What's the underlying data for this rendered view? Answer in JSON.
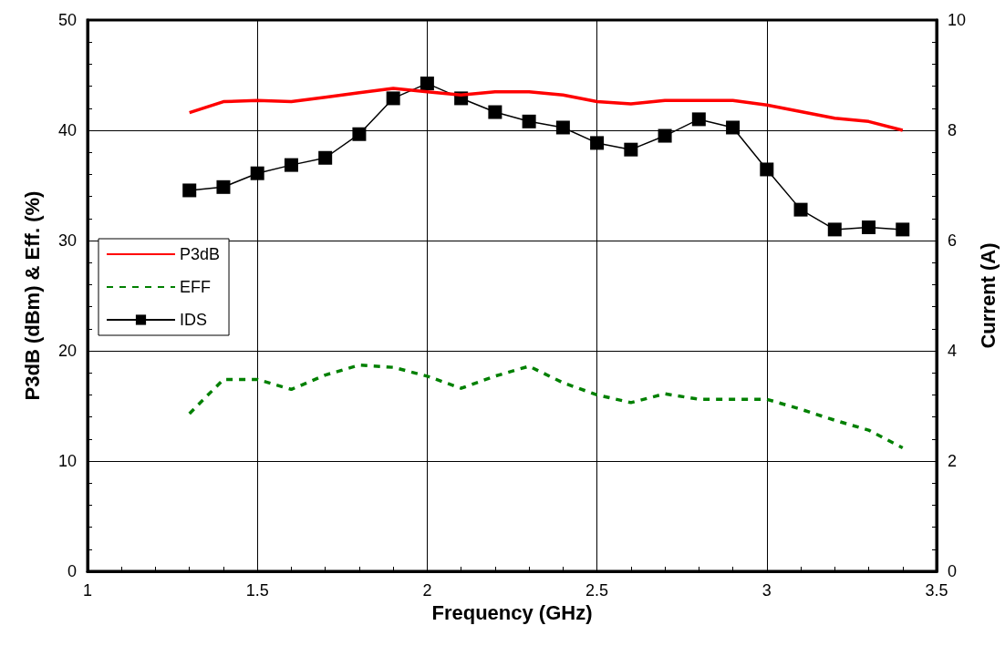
{
  "chart_data": {
    "type": "line",
    "xlabel": "Frequency (GHz)",
    "ylabel": "P3dB (dBm) & Eff. (%)",
    "y2label": "Current (A)",
    "x": [
      1.3,
      1.4,
      1.5,
      1.6,
      1.7,
      1.8,
      1.9,
      2.0,
      2.1,
      2.2,
      2.3,
      2.4,
      2.5,
      2.6,
      2.7,
      2.8,
      2.9,
      3.0,
      3.1,
      3.2,
      3.3,
      3.4
    ],
    "series": [
      {
        "name": "P3dB",
        "color": "#ff0000",
        "line_style": "solid",
        "marker": "none",
        "values": [
          41.6,
          42.6,
          42.7,
          42.6,
          43.0,
          43.4,
          43.8,
          43.5,
          43.2,
          43.5,
          43.5,
          43.2,
          42.6,
          42.4,
          42.7,
          42.7,
          42.7,
          42.3,
          41.7,
          41.1,
          40.8,
          40.0
        ]
      },
      {
        "name": "EFF",
        "color": "#008000",
        "line_style": "dashed",
        "marker": "none",
        "values": [
          14.3,
          17.4,
          17.4,
          16.5,
          17.8,
          18.7,
          18.5,
          17.7,
          16.6,
          17.7,
          18.6,
          17.1,
          16.0,
          15.3,
          16.1,
          15.6,
          15.6,
          15.6,
          14.7,
          13.7,
          12.8,
          11.2
        ]
      },
      {
        "name": "IDS",
        "color": "#000000",
        "line_style": "solid",
        "marker": "square",
        "axis": "y2",
        "values": [
          6.91,
          6.97,
          7.22,
          7.37,
          7.5,
          7.93,
          8.58,
          8.85,
          8.58,
          8.33,
          8.16,
          8.05,
          7.77,
          7.65,
          7.9,
          8.2,
          8.05,
          7.29,
          6.56,
          6.2,
          6.24,
          6.2
        ]
      }
    ],
    "xlim": [
      1,
      3.5
    ],
    "xticks": [
      1,
      1.5,
      2,
      2.5,
      3,
      3.5
    ],
    "ylim": [
      0,
      50
    ],
    "yticks": [
      0,
      10,
      20,
      30,
      40,
      50
    ],
    "y2lim": [
      0,
      10
    ],
    "y2ticks": [
      0,
      2,
      4,
      6,
      8,
      10
    ],
    "grid": true,
    "legend": "left"
  }
}
